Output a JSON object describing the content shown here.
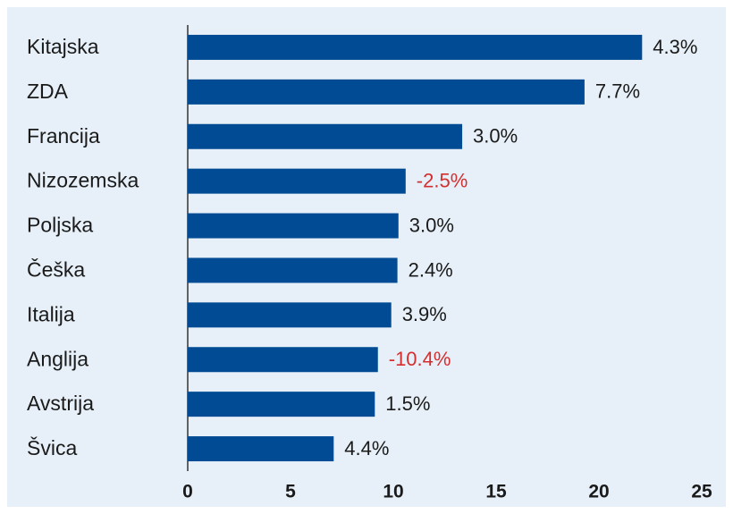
{
  "chart_data": {
    "type": "hbar",
    "categories": [
      "Kitajska",
      "ZDA",
      "Francija",
      "Nizozemska",
      "Poljska",
      "Češka",
      "Italija",
      "Anglija",
      "Avstrija",
      "Švica"
    ],
    "values": [
      22.1,
      19.3,
      13.35,
      10.6,
      10.25,
      10.2,
      9.9,
      9.25,
      9.1,
      7.1
    ],
    "bar_annotations": [
      "4.3%",
      "7.7%",
      "3.0%",
      "-2.5%",
      "3.0%",
      "2.4%",
      "3.9%",
      "-10.4%",
      "1.5%",
      "4.4%"
    ],
    "color": "#004b93",
    "annotation_color": "#1a1a1a",
    "negative_annotation_color": "#d32f2f",
    "xlim": [
      0,
      25
    ],
    "xticks": [
      0,
      5,
      10,
      15,
      20,
      25
    ],
    "grid": false
  }
}
